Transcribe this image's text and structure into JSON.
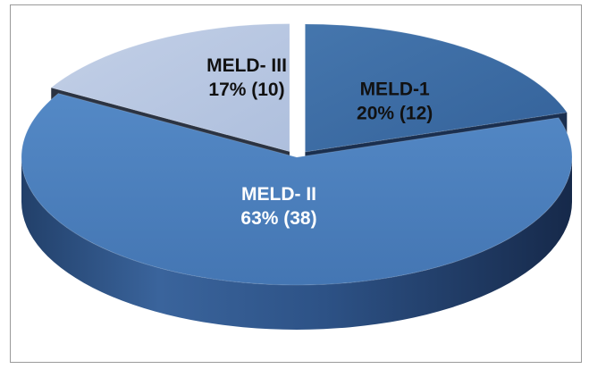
{
  "chart_data": {
    "type": "pie",
    "title": "",
    "categories": [
      "MELD-1",
      "MELD- II",
      "MELD- III"
    ],
    "values": [
      12,
      38,
      10
    ],
    "percent_labels": [
      "20% (12)",
      "63% (38)",
      "17% (10)"
    ],
    "exploded": [
      "MELD-1",
      "MELD- III"
    ],
    "style": "3d",
    "colors": {
      "MELD-1": "#3e6fa6",
      "MELD- II": "#4a7ebb",
      "MELD- III": "#b6c5e0"
    }
  }
}
